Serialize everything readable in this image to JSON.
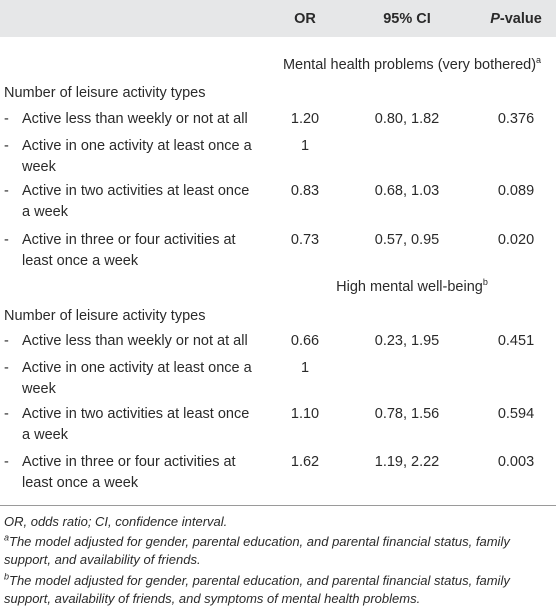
{
  "header": {
    "col_or": "OR",
    "col_ci": "95% CI",
    "col_p_italic": "P",
    "col_p_rest": "-value"
  },
  "sections": [
    {
      "title": "Mental health problems (very bothered)",
      "title_sup": "a",
      "group_label": "Number of leisure activity types",
      "rows": [
        {
          "line1": "Active less than weekly or not at all",
          "line2": "",
          "or": "1.20",
          "ci": "0.80, 1.82",
          "p": "0.376"
        },
        {
          "line1": "Active in one activity at least once a",
          "line2": "week",
          "or": "1",
          "ci": "",
          "p": ""
        },
        {
          "line1": "Active in two activities at least once",
          "line2": "a week",
          "or": "0.83",
          "ci": "0.68, 1.03",
          "p": "0.089"
        },
        {
          "line1": "Active in three or four activities at",
          "line2": "least once a week",
          "or": "0.73",
          "ci": "0.57, 0.95",
          "p": "0.020"
        }
      ]
    },
    {
      "title": "High mental well-being",
      "title_sup": "b",
      "group_label": "Number of leisure activity types",
      "rows": [
        {
          "line1": "Active less than weekly or not at all",
          "line2": "",
          "or": "0.66",
          "ci": "0.23, 1.95",
          "p": "0.451"
        },
        {
          "line1": "Active in one activity at least once a",
          "line2": "week",
          "or": "1",
          "ci": "",
          "p": ""
        },
        {
          "line1": "Active in two activities at least once",
          "line2": "a week",
          "or": "1.10",
          "ci": "0.78, 1.56",
          "p": "0.594"
        },
        {
          "line1": "Active in three or four activities at",
          "line2": "least once a week",
          "or": "1.62",
          "ci": "1.19, 2.22",
          "p": "0.003"
        }
      ]
    }
  ],
  "dash": "-",
  "footnotes": {
    "abbrev": "OR, odds ratio; CI, confidence interval.",
    "a_mark": "a",
    "a_text": "The model adjusted for gender, parental education, and parental financial status, family support, and availability of friends.",
    "b_mark": "b",
    "b_text": "The model adjusted for gender, parental education, and parental financial status, family support, availability of friends, and symptoms of mental health problems."
  }
}
